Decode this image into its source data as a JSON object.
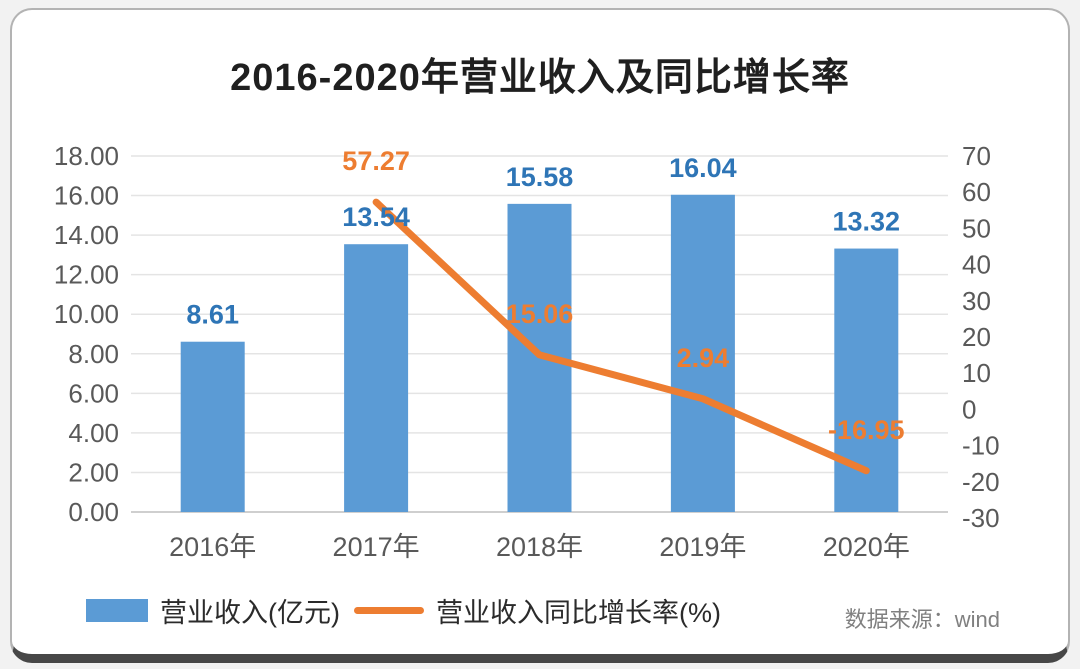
{
  "title": "2016-2020年营业收入及同比增长率",
  "source_note": "数据来源：wind",
  "legend": {
    "bar_label": "营业收入(亿元)",
    "line_label": "营业收入同比增长率(%)"
  },
  "colors": {
    "bar": "#5B9BD5",
    "bar_value_label": "#2E75B6",
    "line": "#ED7D31",
    "line_value_label": "#ED7D31",
    "axis_text": "#595959",
    "grid": "#e4e4e4",
    "baseline": "#bfbfbf"
  },
  "chart_data": {
    "type": "bar",
    "title": "2016-2020年营业收入及同比增长率",
    "categories": [
      "2016年",
      "2017年",
      "2018年",
      "2019年",
      "2020年"
    ],
    "series": [
      {
        "name": "营业收入(亿元)",
        "chart": "bar",
        "axis": "left",
        "color": "#5B9BD5",
        "values": [
          8.61,
          13.54,
          15.58,
          16.04,
          13.32
        ],
        "labels": [
          "8.61",
          "13.54",
          "15.58",
          "16.04",
          "13.32"
        ]
      },
      {
        "name": "营业收入同比增长率(%)",
        "chart": "line",
        "axis": "right",
        "color": "#ED7D31",
        "values": [
          null,
          57.27,
          15.06,
          2.94,
          -16.95
        ],
        "labels": [
          null,
          "57.27",
          "15.06",
          "2.94",
          "-16.95"
        ]
      }
    ],
    "left_axis": {
      "min": 0,
      "max": 18,
      "step": 2,
      "tick_labels": [
        "18.00",
        "16.00",
        "14.00",
        "12.00",
        "10.00",
        "8.00",
        "6.00",
        "4.00",
        "2.00",
        "0.00"
      ]
    },
    "right_axis": {
      "min": -30,
      "max": 70,
      "step": 10,
      "tick_labels": [
        "70",
        "60",
        "50",
        "40",
        "30",
        "20",
        "10",
        "0",
        "-10",
        "-20",
        "-30"
      ]
    },
    "grid": true,
    "legend_position": "bottom"
  }
}
